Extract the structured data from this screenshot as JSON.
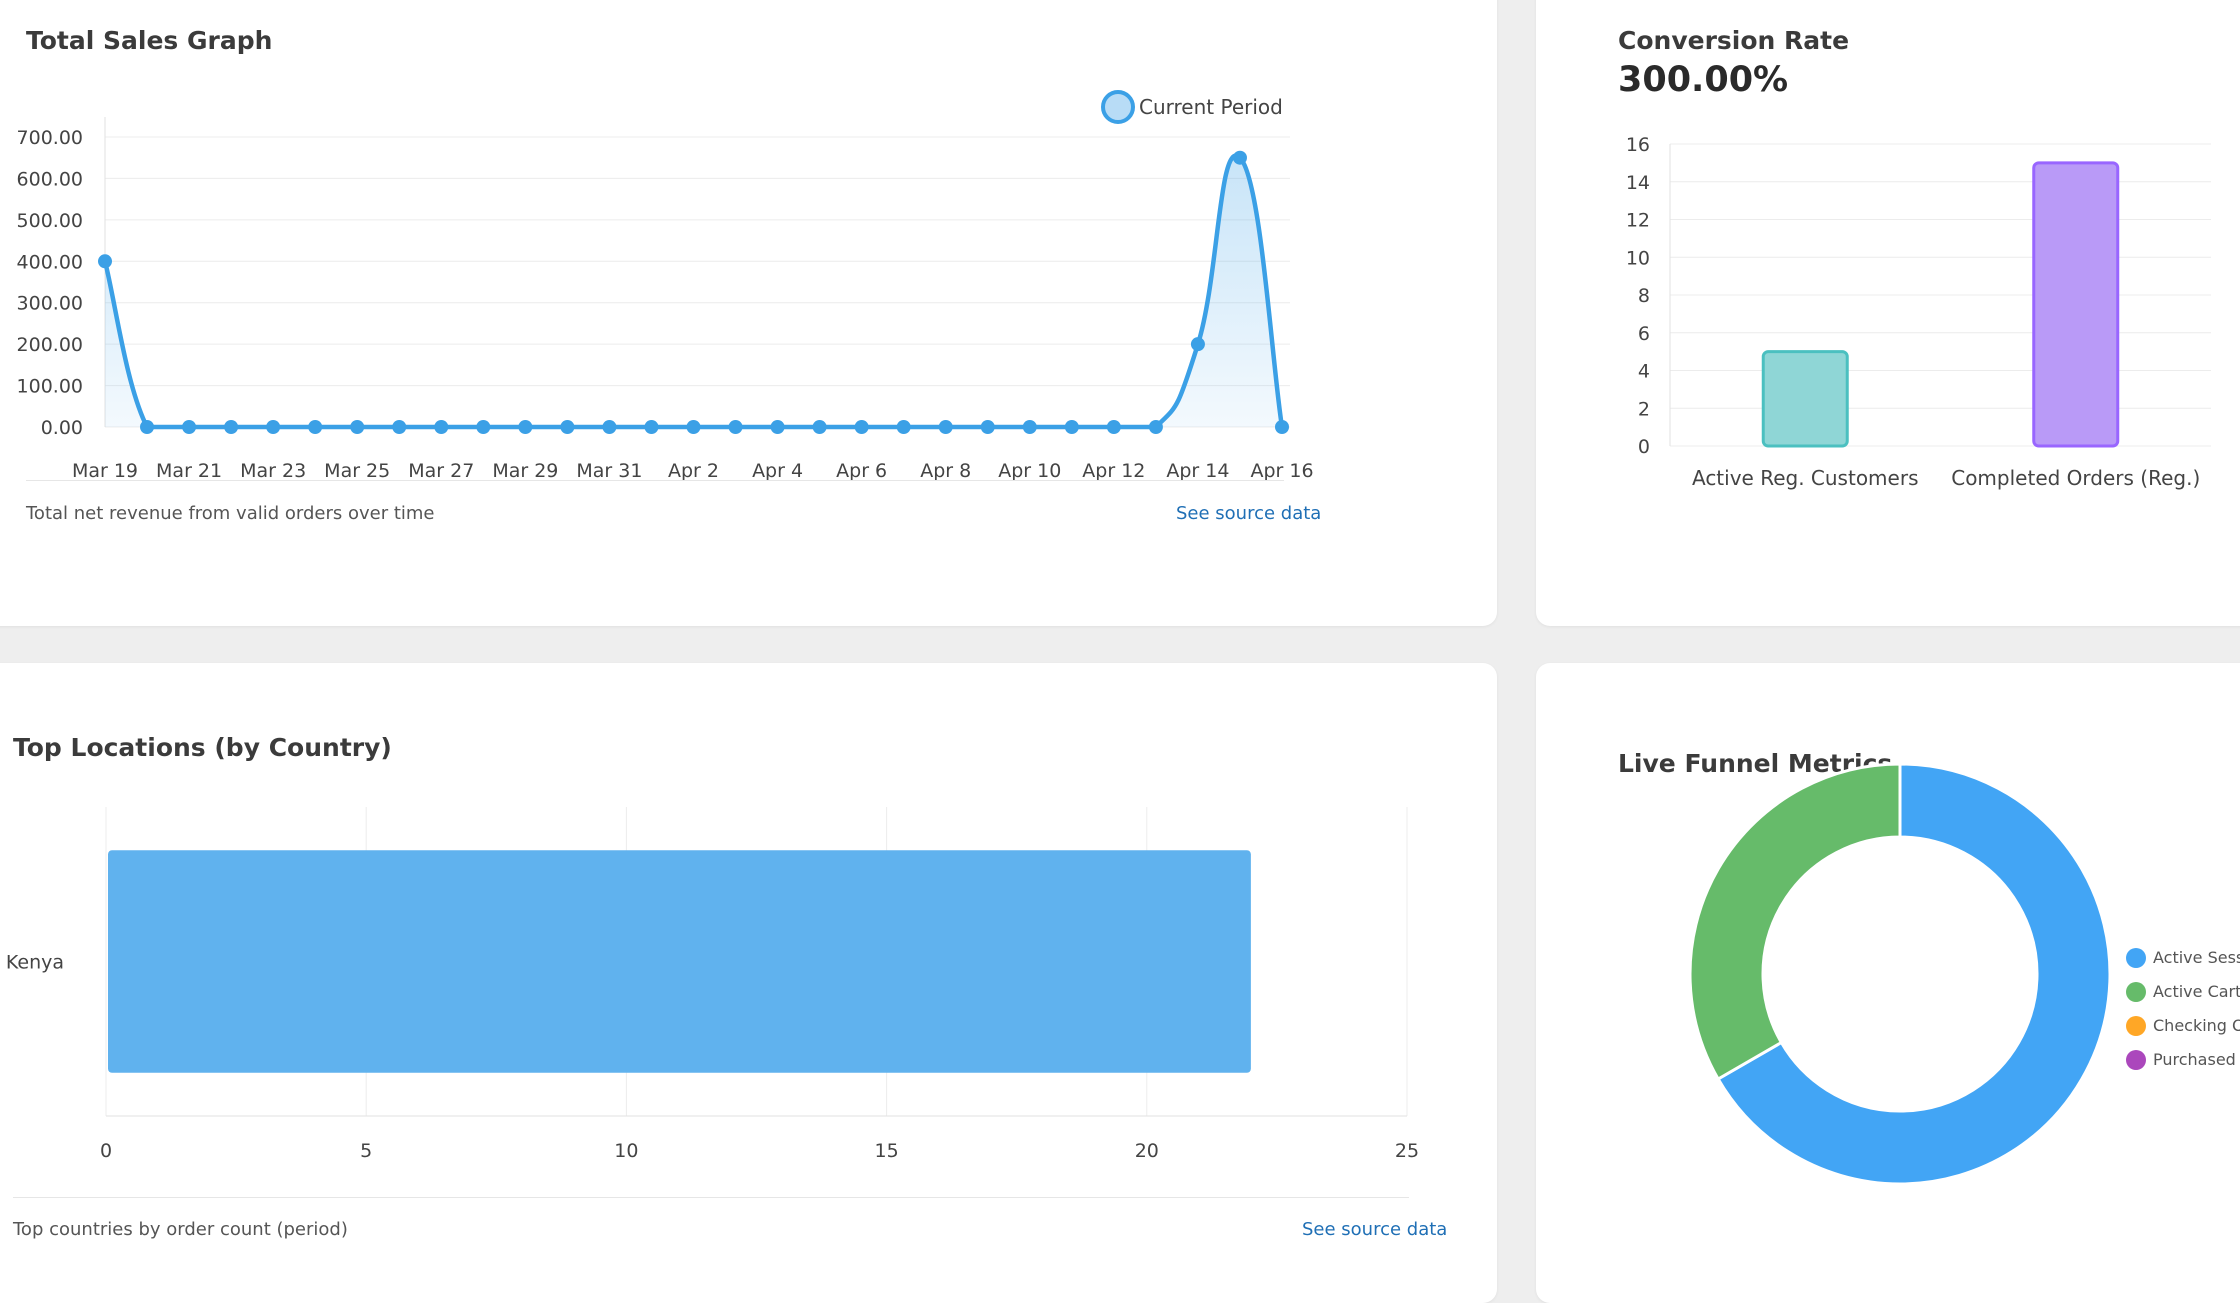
{
  "sales": {
    "title": "Total Sales Graph",
    "footnote": "Total net revenue from valid orders over time",
    "link": "See source data",
    "chart_data": {
      "type": "area",
      "series": [
        {
          "name": "Current Period",
          "color": "#3ba0e6",
          "values": [
            400,
            0,
            0,
            0,
            0,
            0,
            0,
            0,
            0,
            0,
            0,
            0,
            0,
            0,
            0,
            0,
            0,
            0,
            0,
            0,
            0,
            0,
            0,
            0,
            0,
            0,
            200,
            650,
            0
          ]
        }
      ],
      "x": [
        "Mar 19",
        "Mar 20",
        "Mar 21",
        "Mar 22",
        "Mar 23",
        "Mar 24",
        "Mar 25",
        "Mar 26",
        "Mar 27",
        "Mar 28",
        "Mar 29",
        "Mar 30",
        "Mar 31",
        "Apr 1",
        "Apr 2",
        "Apr 3",
        "Apr 4",
        "Apr 5",
        "Apr 6",
        "Apr 7",
        "Apr 8",
        "Apr 9",
        "Apr 10",
        "Apr 11",
        "Apr 12",
        "Apr 13",
        "Apr 14",
        "Apr 15",
        "Apr 16"
      ],
      "x_tick_labels": [
        "Mar 19",
        "Mar 21",
        "Mar 23",
        "Mar 25",
        "Mar 27",
        "Mar 29",
        "Mar 31",
        "Apr 2",
        "Apr 4",
        "Apr 6",
        "Apr 8",
        "Apr 10",
        "Apr 12",
        "Apr 14",
        "Apr 16"
      ],
      "y_tick_labels": [
        "700.00",
        "600.00",
        "500.00",
        "400.00",
        "300.00",
        "200.00",
        "100.00",
        "0.00"
      ],
      "ylim": [
        0,
        700
      ],
      "legend": "top-right",
      "grid": true
    }
  },
  "conversion": {
    "title": "Conversion Rate",
    "value": "300.00%",
    "chart_data": {
      "type": "bar",
      "categories": [
        "Active Reg. Customers",
        "Completed Orders (Reg.)"
      ],
      "values": [
        5,
        15
      ],
      "colors": [
        "#8fd6d6",
        "#b99af7"
      ],
      "border_colors": [
        "#4bc0c0",
        "#9966ff"
      ],
      "ylim": [
        0,
        16
      ],
      "y_ticks": [
        "16",
        "14",
        "12",
        "10",
        "8",
        "6",
        "4",
        "2",
        "0"
      ],
      "grid": true
    }
  },
  "locations": {
    "title": "Top Locations (by Country)",
    "footnote": "Top countries by order count (period)",
    "link": "See source data",
    "chart_data": {
      "type": "bar",
      "orientation": "horizontal",
      "categories": [
        "Kenya"
      ],
      "values": [
        22
      ],
      "color": "#60b2ee",
      "xlim": [
        0,
        25
      ],
      "x_ticks": [
        "0",
        "5",
        "10",
        "15",
        "20",
        "25"
      ],
      "grid": true
    }
  },
  "funnel": {
    "title": "Live Funnel Metrics",
    "chart_data": {
      "type": "pie",
      "donut": true,
      "labels": [
        "Active Sessions",
        "Active Carts",
        "Checking Out",
        "Purchased"
      ],
      "values": [
        2,
        1,
        0,
        0
      ],
      "colors": [
        "#42a5f5",
        "#66bb6a",
        "#ffa726",
        "#ab47bc"
      ],
      "legend": "right"
    }
  }
}
